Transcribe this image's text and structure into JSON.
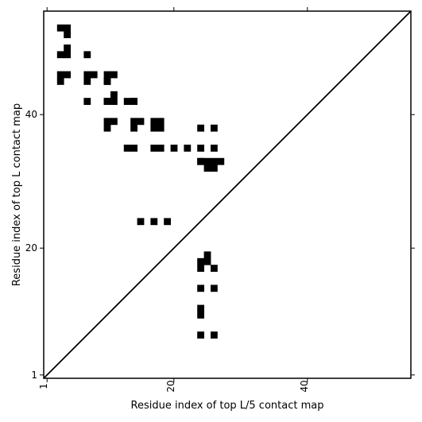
{
  "chart_data": {
    "type": "heatmap",
    "title": "",
    "xlabel": "Residue index of top L/5 contact map",
    "ylabel": "Residue index of top L contact map",
    "xlim": [
      0.5,
      55.5
    ],
    "ylim": [
      0.5,
      55.5
    ],
    "x_ticks": [
      {
        "value": 1,
        "label": "1"
      },
      {
        "value": 20,
        "label": "20"
      },
      {
        "value": 40,
        "label": "40"
      }
    ],
    "y_ticks": [
      {
        "value": 1,
        "label": "1"
      },
      {
        "value": 20,
        "label": "20"
      },
      {
        "value": 40,
        "label": "40"
      }
    ],
    "diagonal": true,
    "colors": {
      "contact": "#000000",
      "background": "#ffffff",
      "diagonal": "#000000"
    },
    "top_L_contacts": [
      [
        3,
        53
      ],
      [
        4,
        53
      ],
      [
        4,
        52
      ],
      [
        4,
        50
      ],
      [
        3,
        49
      ],
      [
        4,
        49
      ],
      [
        7,
        49
      ],
      [
        3,
        46
      ],
      [
        4,
        46
      ],
      [
        7,
        46
      ],
      [
        8,
        46
      ],
      [
        11,
        46
      ],
      [
        3,
        45
      ],
      [
        7,
        45
      ],
      [
        10,
        45
      ],
      [
        11,
        43
      ],
      [
        7,
        42
      ],
      [
        10,
        42
      ],
      [
        11,
        42
      ],
      [
        14,
        42
      ],
      [
        10,
        39
      ],
      [
        11,
        39
      ],
      [
        14,
        39
      ],
      [
        15,
        39
      ],
      [
        18,
        39
      ],
      [
        10,
        38
      ],
      [
        14,
        38
      ],
      [
        18,
        38
      ],
      [
        24,
        38
      ],
      [
        26,
        38
      ],
      [
        13,
        35
      ],
      [
        14,
        35
      ],
      [
        17,
        35
      ],
      [
        18,
        35
      ],
      [
        20,
        35
      ],
      [
        22,
        35
      ],
      [
        24,
        35
      ],
      [
        26,
        35
      ],
      [
        24,
        33
      ],
      [
        25,
        33
      ],
      [
        26,
        33
      ],
      [
        27,
        33
      ],
      [
        25,
        32
      ],
      [
        26,
        32
      ]
    ],
    "top_L5_contacts": [
      [
        26,
        7
      ],
      [
        26,
        14
      ],
      [
        26,
        17
      ],
      [
        25,
        18
      ],
      [
        25,
        19
      ],
      [
        24,
        33
      ],
      [
        24,
        7
      ],
      [
        24,
        10
      ],
      [
        24,
        11
      ],
      [
        24,
        14
      ],
      [
        24,
        17
      ],
      [
        24,
        18
      ],
      [
        19,
        24
      ],
      [
        17,
        24
      ],
      [
        15,
        24
      ],
      [
        17,
        38
      ],
      [
        17,
        39
      ],
      [
        14,
        42
      ],
      [
        13,
        42
      ],
      [
        10,
        42
      ],
      [
        10,
        45
      ],
      [
        10,
        46
      ]
    ]
  }
}
